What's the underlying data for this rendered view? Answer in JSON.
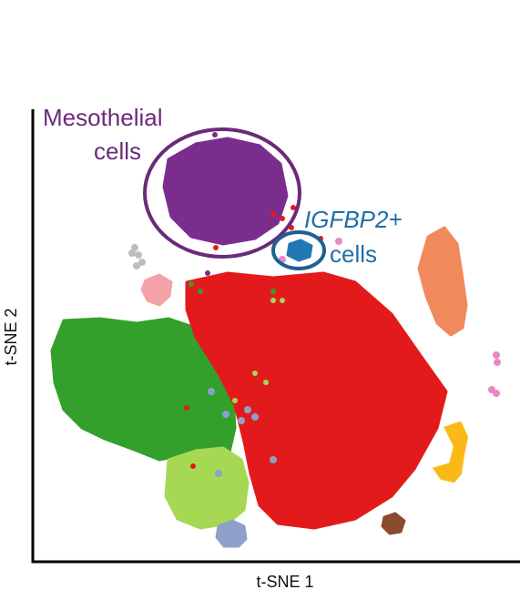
{
  "chart_data": {
    "type": "scatter",
    "title": "",
    "xlabel": "t-SNE 1",
    "ylabel": "t-SNE 2",
    "grid": false,
    "legend": "none",
    "annotations": [
      {
        "id": "mesothelial",
        "lines": [
          "Mesothelial",
          "cells"
        ],
        "color": "#6b2a7a",
        "italic": false,
        "encircled_cluster": "purple"
      },
      {
        "id": "igfbp2",
        "lines": [
          "IGFBP2+",
          "cells"
        ],
        "color": "#1f6fa8",
        "italic_first_line": true,
        "encircled_cluster": "blue"
      }
    ],
    "series": [
      {
        "color": "#e31a1c",
        "cluster": "red-large"
      },
      {
        "color": "#33a02c",
        "cluster": "green-left"
      },
      {
        "color": "#7b2d8e",
        "cluster": "purple-top"
      },
      {
        "color": "#f08a5d",
        "cluster": "orange-right"
      },
      {
        "color": "#a6d854",
        "cluster": "lightgreen-bottom"
      },
      {
        "color": "#fbb917",
        "cluster": "yellow-right"
      },
      {
        "color": "#8da0cb",
        "cluster": "lightblue-bottom"
      },
      {
        "color": "#f4a3a8",
        "cluster": "pink-left"
      },
      {
        "color": "#1f78b4",
        "cluster": "blue-small"
      },
      {
        "color": "#8c4a2f",
        "cluster": "brown-small"
      },
      {
        "color": "#bdbdbd",
        "cluster": "grey-small"
      },
      {
        "color": "#e78ac3",
        "cluster": "magenta-small"
      }
    ]
  }
}
